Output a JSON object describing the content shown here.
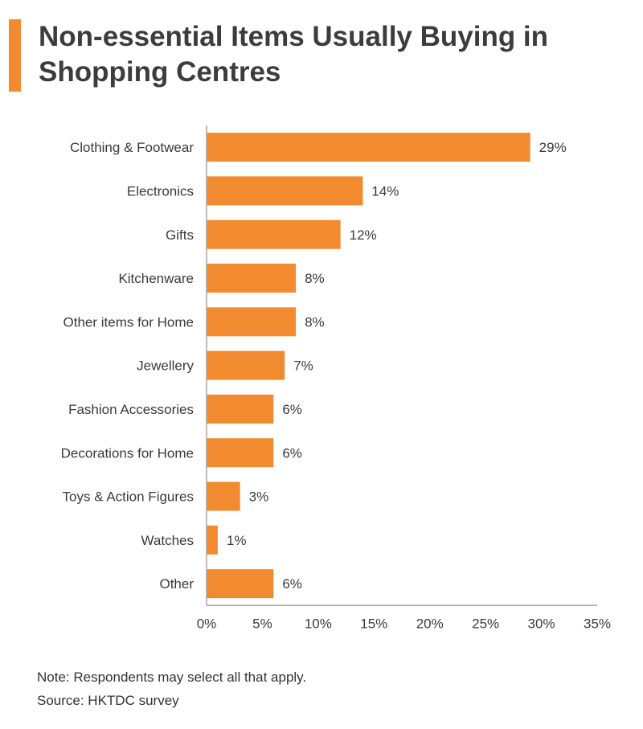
{
  "title": "Non-essential Items Usually Buying in Shopping Centres",
  "colors": {
    "accent": "#f28a30",
    "bar": "#f28a30",
    "axis": "#a6a6a6"
  },
  "chart_data": {
    "type": "bar",
    "orientation": "horizontal",
    "categories": [
      "Clothing & Footwear",
      "Electronics",
      "Gifts",
      "Kitchenware",
      "Other items for Home",
      "Jewellery",
      "Fashion Accessories",
      "Decorations for Home",
      "Toys & Action Figures",
      "Watches",
      "Other"
    ],
    "values": [
      29,
      14,
      12,
      8,
      8,
      7,
      6,
      6,
      3,
      1,
      6
    ],
    "data_labels": [
      "29%",
      "14%",
      "12%",
      "8%",
      "8%",
      "7%",
      "6%",
      "6%",
      "3%",
      "1%",
      "6%"
    ],
    "xlim": [
      0,
      35
    ],
    "xticks": [
      0,
      5,
      10,
      15,
      20,
      25,
      30,
      35
    ],
    "xtick_labels": [
      "0%",
      "5%",
      "10%",
      "15%",
      "20%",
      "25%",
      "30%",
      "35%"
    ],
    "xlabel": "",
    "ylabel": "",
    "grid": false,
    "legend": "none"
  },
  "footnotes": {
    "note": "Note: Respondents may select all that apply.",
    "source": "Source: HKTDC survey"
  }
}
